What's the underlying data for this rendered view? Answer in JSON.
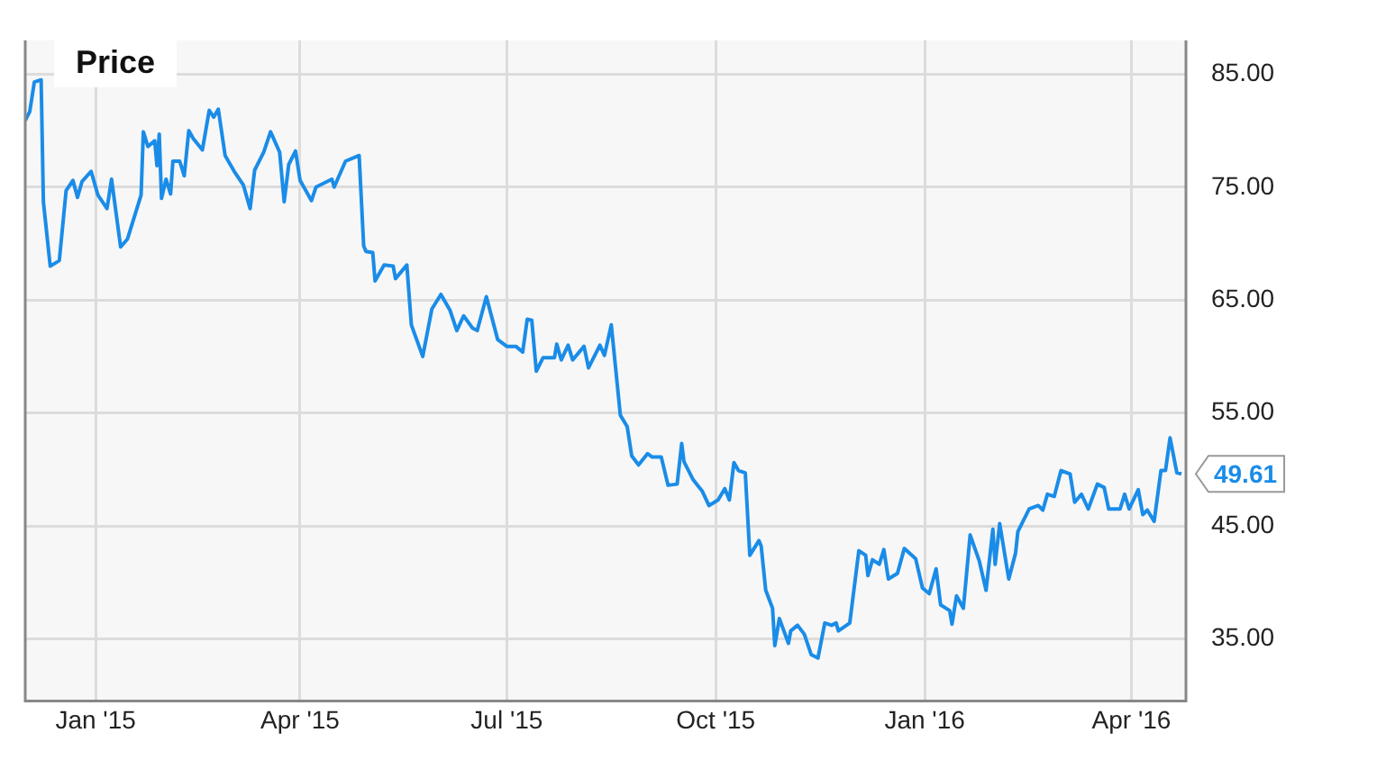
{
  "chart_data": {
    "type": "line",
    "title": "Price",
    "x": [
      "2014-12-01",
      "2014-12-03",
      "2014-12-05",
      "2014-12-08",
      "2014-12-09",
      "2014-12-12",
      "2014-12-16",
      "2014-12-19",
      "2014-12-22",
      "2014-12-24",
      "2014-12-26",
      "2014-12-30",
      "2015-01-02",
      "2015-01-06",
      "2015-01-08",
      "2015-01-12",
      "2015-01-15",
      "2015-01-21",
      "2015-01-22",
      "2015-01-24",
      "2015-01-27",
      "2015-01-28",
      "2015-01-29",
      "2015-01-30",
      "2015-02-01",
      "2015-02-03",
      "2015-02-04",
      "2015-02-07",
      "2015-02-09",
      "2015-02-11",
      "2015-02-13",
      "2015-02-17",
      "2015-02-20",
      "2015-02-22",
      "2015-02-24",
      "2015-02-27",
      "2015-03-03",
      "2015-03-07",
      "2015-03-10",
      "2015-03-12",
      "2015-03-16",
      "2015-03-19",
      "2015-03-23",
      "2015-03-25",
      "2015-03-27",
      "2015-03-30",
      "2015-04-01",
      "2015-04-06",
      "2015-04-08",
      "2015-04-15",
      "2015-04-16",
      "2015-04-21",
      "2015-04-27",
      "2015-04-29",
      "2015-04-30",
      "2015-05-03",
      "2015-05-04",
      "2015-05-08",
      "2015-05-12",
      "2015-05-13",
      "2015-05-18",
      "2015-05-20",
      "2015-05-25",
      "2015-05-29",
      "2015-06-02",
      "2015-06-06",
      "2015-06-09",
      "2015-06-12",
      "2015-06-16",
      "2015-06-18",
      "2015-06-22",
      "2015-06-27",
      "2015-07-01",
      "2015-07-05",
      "2015-07-08",
      "2015-07-10",
      "2015-07-12",
      "2015-07-14",
      "2015-07-17",
      "2015-07-22",
      "2015-07-23",
      "2015-07-25",
      "2015-07-28",
      "2015-07-30",
      "2015-08-04",
      "2015-08-06",
      "2015-08-11",
      "2015-08-13",
      "2015-08-16",
      "2015-08-20",
      "2015-08-23",
      "2015-08-25",
      "2015-08-28",
      "2015-09-01",
      "2015-09-03",
      "2015-09-07",
      "2015-09-10",
      "2015-09-14",
      "2015-09-16",
      "2015-09-17",
      "2015-09-21",
      "2015-09-23",
      "2015-09-25",
      "2015-09-28",
      "2015-10-02",
      "2015-10-05",
      "2015-10-07",
      "2015-10-09",
      "2015-10-11",
      "2015-10-14",
      "2015-10-16",
      "2015-10-20",
      "2015-10-21",
      "2015-10-23",
      "2015-10-26",
      "2015-10-27",
      "2015-10-29",
      "2015-11-02",
      "2015-11-03",
      "2015-11-06",
      "2015-11-09",
      "2015-11-12",
      "2015-11-15",
      "2015-11-18",
      "2015-11-21",
      "2015-11-23",
      "2015-11-24",
      "2015-11-29",
      "2015-12-03",
      "2015-12-06",
      "2015-12-07",
      "2015-12-09",
      "2015-12-12",
      "2015-12-14",
      "2015-12-16",
      "2015-12-20",
      "2015-12-23",
      "2015-12-28",
      "2015-12-31",
      "2016-01-03",
      "2016-01-06",
      "2016-01-08",
      "2016-01-12",
      "2016-01-13",
      "2016-01-15",
      "2016-01-18",
      "2016-01-21",
      "2016-01-25",
      "2016-01-28",
      "2016-01-31",
      "2016-02-01",
      "2016-02-03",
      "2016-02-07",
      "2016-02-10",
      "2016-02-11",
      "2016-02-16",
      "2016-02-20",
      "2016-02-22",
      "2016-02-24",
      "2016-02-27",
      "2016-03-01",
      "2016-03-05",
      "2016-03-07",
      "2016-03-10",
      "2016-03-13",
      "2016-03-17",
      "2016-03-20",
      "2016-03-22",
      "2016-03-27",
      "2016-03-29",
      "2016-03-31",
      "2016-04-04",
      "2016-04-06",
      "2016-04-08",
      "2016-04-11",
      "2016-04-14",
      "2016-04-16",
      "2016-04-18",
      "2016-04-21",
      "2016-04-23"
    ],
    "series": [
      {
        "color": "#1a8ce8",
        "values": [
          80.9,
          81.7,
          84.3,
          84.5,
          73.7,
          68.0,
          68.5,
          74.7,
          75.6,
          74.1,
          75.5,
          76.4,
          74.3,
          73.1,
          75.7,
          69.7,
          70.4,
          74.3,
          79.9,
          78.6,
          79.1,
          76.9,
          79.7,
          74.0,
          75.7,
          74.4,
          77.3,
          77.3,
          76.0,
          80.0,
          79.3,
          78.3,
          81.8,
          81.2,
          81.9,
          77.8,
          76.4,
          75.2,
          73.1,
          76.5,
          78.1,
          79.9,
          78.1,
          73.7,
          77.0,
          78.2,
          75.6,
          73.8,
          75.0,
          75.7,
          75.0,
          77.3,
          77.8,
          69.8,
          69.3,
          69.2,
          66.7,
          68.1,
          68.0,
          66.9,
          68.1,
          62.8,
          60.0,
          64.2,
          65.5,
          64.1,
          62.3,
          63.6,
          62.5,
          62.3,
          65.3,
          61.5,
          60.9,
          60.9,
          60.4,
          63.3,
          63.2,
          58.7,
          59.9,
          59.9,
          61.1,
          59.7,
          61.0,
          59.7,
          60.9,
          59.0,
          61.0,
          60.1,
          62.8,
          54.8,
          53.8,
          51.2,
          50.4,
          51.4,
          51.1,
          51.1,
          48.6,
          48.7,
          52.3,
          50.7,
          49.1,
          48.6,
          48.1,
          46.8,
          47.3,
          48.3,
          47.3,
          50.6,
          49.9,
          49.7,
          42.4,
          43.7,
          43.2,
          39.3,
          37.7,
          34.4,
          36.8,
          34.6,
          35.7,
          36.2,
          35.4,
          33.6,
          33.3,
          36.4,
          36.2,
          36.4,
          35.7,
          36.4,
          42.8,
          42.4,
          40.6,
          42.0,
          41.6,
          42.9,
          40.3,
          40.8,
          43.0,
          42.1,
          39.5,
          39.0,
          41.2,
          38.0,
          37.5,
          36.3,
          38.8,
          37.7,
          44.2,
          41.9,
          39.3,
          44.7,
          41.6,
          45.2,
          40.3,
          42.6,
          44.5,
          46.5,
          46.8,
          46.4,
          47.8,
          47.6,
          49.9,
          49.6,
          47.1,
          47.8,
          46.5,
          48.7,
          48.4,
          46.5,
          46.5,
          47.8,
          46.5,
          48.2,
          46.0,
          46.4,
          45.4,
          49.9,
          49.9,
          52.8,
          49.7,
          49.61
        ]
      }
    ],
    "xlim": [
      "2014-12-01",
      "2016-04-25"
    ],
    "xticks": [
      {
        "value": "2015-01-01",
        "label": "Jan '15"
      },
      {
        "value": "2015-04-01",
        "label": "Apr '15"
      },
      {
        "value": "2015-07-01",
        "label": "Jul '15"
      },
      {
        "value": "2015-10-01",
        "label": "Oct '15"
      },
      {
        "value": "2016-01-01",
        "label": "Jan '16"
      },
      {
        "value": "2016-04-01",
        "label": "Apr '16"
      }
    ],
    "ylim": [
      29.5,
      88
    ],
    "yticks": [
      {
        "value": 35,
        "label": "35.00"
      },
      {
        "value": 45,
        "label": "45.00"
      },
      {
        "value": 55,
        "label": "55.00"
      },
      {
        "value": 65,
        "label": "65.00"
      },
      {
        "value": 75,
        "label": "75.00"
      },
      {
        "value": 85,
        "label": "85.00"
      }
    ],
    "annotations": [
      {
        "text": "49.61",
        "x": "2016-04-23",
        "y": 49.61
      }
    ],
    "grid": true,
    "legend": false,
    "marker": "none",
    "line_style": "solid"
  }
}
